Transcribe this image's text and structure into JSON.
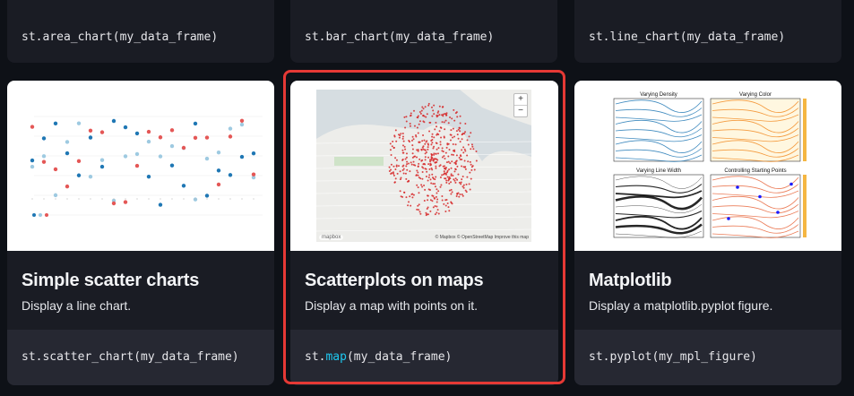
{
  "top_cards": [
    {
      "fn": "st.area_chart",
      "arg": "(my_data_frame)"
    },
    {
      "fn": "st.bar_chart",
      "arg": "(my_data_frame)"
    },
    {
      "fn": "st.line_chart",
      "arg": "(my_data_frame)"
    }
  ],
  "cards": [
    {
      "title": "Simple scatter charts",
      "desc": "Display a line chart.",
      "code_prefix": "st.",
      "code_fn": "scatter_chart",
      "code_arg": "(my_data_frame)"
    },
    {
      "title": "Scatterplots on maps",
      "desc": "Display a map with points on it.",
      "code_prefix": "st.",
      "code_fn": "map",
      "code_arg": "(my_data_frame)",
      "map_zoom_in": "+",
      "map_zoom_out": "−",
      "map_attribution": "© Mapbox © OpenStreetMap Improve this map",
      "map_logo": "mapbox"
    },
    {
      "title": "Matplotlib",
      "desc": "Display a matplotlib.pyplot figure.",
      "code_prefix": "st.",
      "code_fn": "pyplot",
      "code_arg": "(my_mpl_figure)",
      "subplot_titles": [
        "Varying Density",
        "Varying Color",
        "Varying Line Width",
        "Controlling Starting Points"
      ]
    }
  ],
  "colors": {
    "page_bg": "#0e1117",
    "card_bg": "#1a1c24",
    "code_bg": "#262832",
    "highlight_border": "#e53935",
    "code_highlight": "#1ec8f0",
    "scatter_blue": "#1f77b4",
    "scatter_lightblue": "#9ecae1",
    "scatter_red": "#e45756",
    "map_point": "#d62728"
  }
}
